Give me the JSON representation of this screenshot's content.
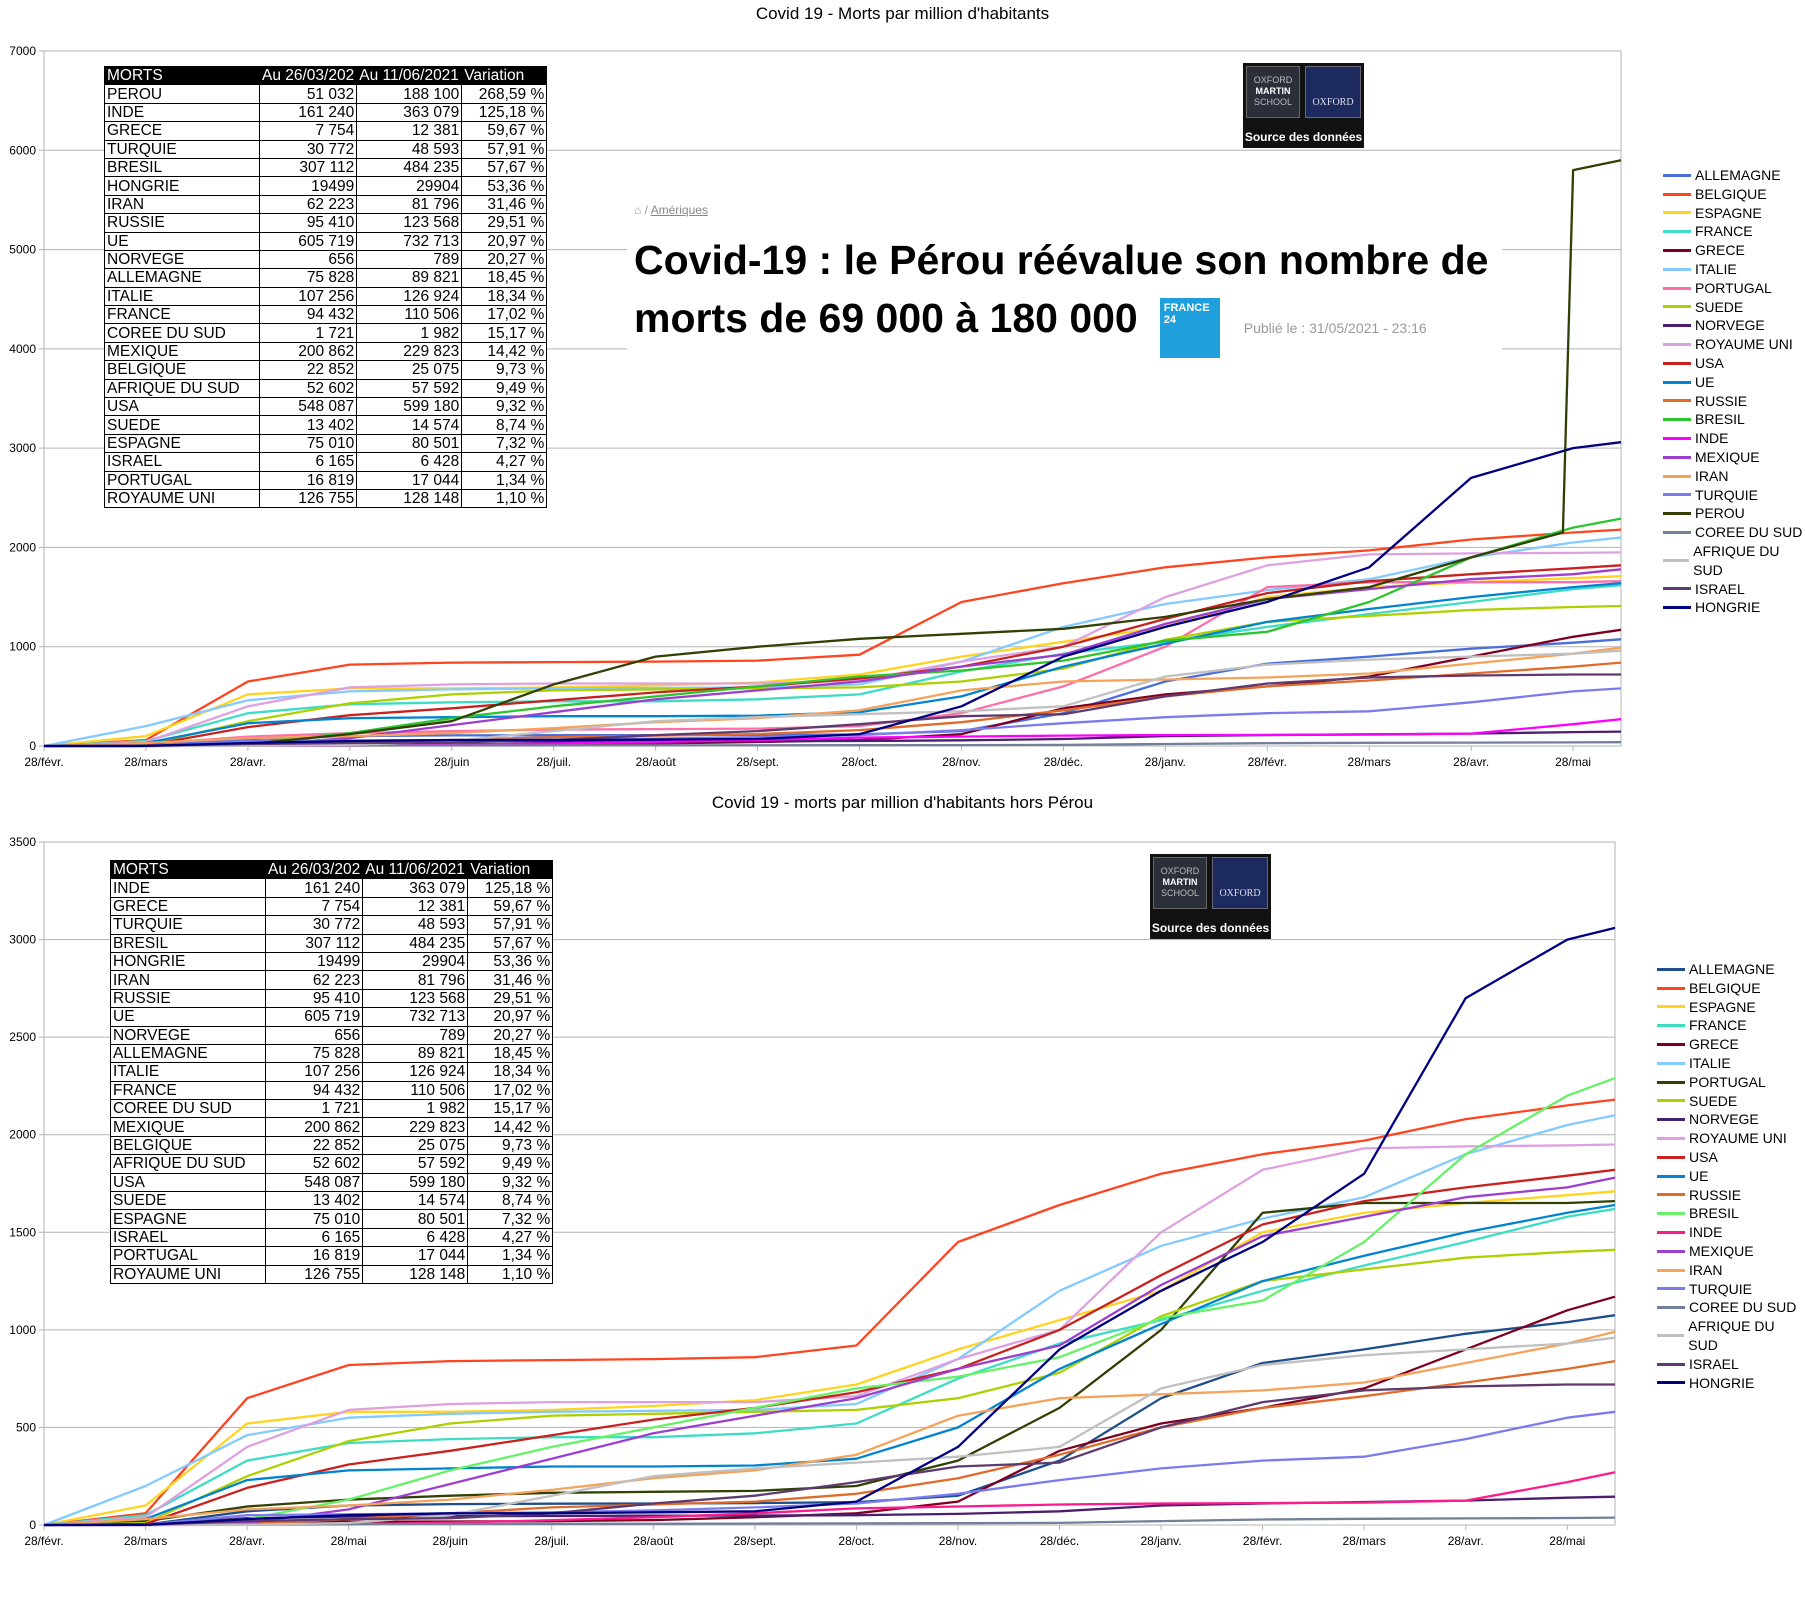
{
  "chart_data": [
    {
      "type": "line",
      "title": "Covid 19 - Morts par million d'habitants",
      "ylim": [
        0,
        7000
      ],
      "yticks": [
        0,
        1000,
        2000,
        3000,
        4000,
        5000,
        6000,
        7000
      ],
      "include_peru": true,
      "legend_placement": "right"
    },
    {
      "type": "line",
      "title": "Covid 19 - morts par million d'habitants hors Pérou",
      "ylim": [
        0,
        3500
      ],
      "yticks": [
        0,
        500,
        1000,
        1500,
        2000,
        2500,
        3000,
        3500
      ],
      "include_peru": false,
      "legend_placement": "right"
    }
  ],
  "x_ticks": [
    "28/févr.",
    "28/mars",
    "28/avr.",
    "28/mai",
    "28/juin",
    "28/juil.",
    "28/août",
    "28/sept.",
    "28/oct.",
    "28/nov.",
    "28/déc.",
    "28/janv.",
    "28/févr.",
    "28/mars",
    "28/avr.",
    "28/mai"
  ],
  "x_months": [
    0,
    1,
    2,
    3,
    4,
    5,
    6,
    7,
    8,
    9,
    10,
    11,
    12,
    13,
    14,
    15,
    15.47
  ],
  "series": [
    {
      "name": "ALLEMAGNE",
      "colorTop": "#4a6fdc",
      "colorBottom": "#1f4e8c",
      "values": [
        0,
        2,
        70,
        100,
        107,
        109,
        110,
        112,
        117,
        150,
        330,
        650,
        830,
        900,
        980,
        1040,
        1075
      ]
    },
    {
      "name": "BELGIQUE",
      "colorTop": "#ff4420",
      "colorBottom": "#ff4420",
      "values": [
        0,
        60,
        650,
        820,
        840,
        845,
        850,
        860,
        920,
        1450,
        1640,
        1800,
        1900,
        1970,
        2080,
        2150,
        2180
      ]
    },
    {
      "name": "ESPAGNE",
      "colorTop": "#ffd320",
      "colorBottom": "#ffd320",
      "values": [
        0,
        100,
        520,
        580,
        580,
        590,
        610,
        640,
        720,
        900,
        1050,
        1200,
        1500,
        1600,
        1650,
        1690,
        1710
      ]
    },
    {
      "name": "FRANCE",
      "colorTop": "#3ddcc4",
      "colorBottom": "#3ddcc4",
      "values": [
        0,
        50,
        330,
        420,
        440,
        450,
        450,
        470,
        520,
        750,
        930,
        1050,
        1200,
        1330,
        1450,
        1580,
        1620
      ]
    },
    {
      "name": "GRECE",
      "colorTop": "#7e0021",
      "colorBottom": "#7e0021",
      "values": [
        0,
        3,
        15,
        17,
        18,
        20,
        25,
        40,
        60,
        120,
        380,
        520,
        600,
        700,
        900,
        1100,
        1170
      ]
    },
    {
      "name": "ITALIE",
      "colorTop": "#83caff",
      "colorBottom": "#83caff",
      "values": [
        0,
        200,
        460,
        550,
        570,
        580,
        585,
        590,
        620,
        850,
        1200,
        1430,
        1570,
        1680,
        1900,
        2050,
        2100
      ]
    },
    {
      "name": "PORTUGAL",
      "colorTop": "#ff6ea8",
      "colorBottom": "#314004",
      "values": [
        0,
        20,
        95,
        130,
        150,
        165,
        170,
        175,
        200,
        330,
        600,
        1000,
        1600,
        1650,
        1650,
        1650,
        1660
      ]
    },
    {
      "name": "SUEDE",
      "colorTop": "#aecf00",
      "colorBottom": "#aecf00",
      "values": [
        0,
        10,
        250,
        430,
        520,
        560,
        570,
        580,
        590,
        650,
        780,
        1070,
        1250,
        1310,
        1370,
        1400,
        1410
      ]
    },
    {
      "name": "NORVEGE",
      "colorTop": "#4b1f6f",
      "colorBottom": "#4b1f6f",
      "values": [
        0,
        3,
        35,
        43,
        45,
        46,
        48,
        48,
        50,
        57,
        70,
        100,
        110,
        118,
        125,
        140,
        145
      ]
    },
    {
      "name": "ROYAUME UNI",
      "colorTop": "#dea0e0",
      "colorBottom": "#dea0e0",
      "values": [
        0,
        40,
        400,
        590,
        620,
        630,
        630,
        630,
        660,
        850,
        1000,
        1500,
        1820,
        1930,
        1940,
        1945,
        1950
      ]
    },
    {
      "name": "USA",
      "colorTop": "#c9211e",
      "colorBottom": "#c9211e",
      "values": [
        0,
        5,
        190,
        310,
        380,
        460,
        540,
        600,
        680,
        800,
        1000,
        1280,
        1540,
        1660,
        1730,
        1790,
        1820
      ]
    },
    {
      "name": "UE",
      "colorTop": "#0084d1",
      "colorBottom": "#0084d1",
      "values": [
        0,
        30,
        230,
        280,
        290,
        300,
        300,
        305,
        340,
        500,
        800,
        1030,
        1250,
        1380,
        1500,
        1600,
        1640
      ]
    },
    {
      "name": "RUSSIE",
      "colorTop": "#e16b2a",
      "colorBottom": "#e16b2a",
      "values": [
        0,
        0,
        5,
        30,
        60,
        90,
        105,
        120,
        160,
        240,
        360,
        500,
        600,
        660,
        730,
        800,
        840
      ]
    },
    {
      "name": "BRESIL",
      "colorTop": "#2ec42e",
      "colorBottom": "#66f266",
      "values": [
        0,
        1,
        30,
        130,
        280,
        400,
        500,
        600,
        700,
        760,
        860,
        1060,
        1150,
        1450,
        1900,
        2200,
        2290
      ]
    },
    {
      "name": "INDE",
      "colorTop": "#ff00ff",
      "colorBottom": "#ff1a8c",
      "values": [
        0,
        0,
        1,
        4,
        12,
        25,
        40,
        60,
        85,
        95,
        105,
        110,
        112,
        115,
        125,
        220,
        270
      ]
    },
    {
      "name": "MEXIQUE",
      "colorTop": "#9c3fd0",
      "colorBottom": "#9c3fd0",
      "values": [
        0,
        0,
        10,
        80,
        210,
        340,
        470,
        560,
        650,
        800,
        920,
        1230,
        1480,
        1580,
        1680,
        1730,
        1780
      ]
    },
    {
      "name": "IRAN",
      "colorTop": "#f5a35a",
      "colorBottom": "#f5a35a",
      "values": [
        0,
        30,
        80,
        100,
        130,
        180,
        240,
        280,
        360,
        560,
        650,
        670,
        690,
        730,
        830,
        930,
        990
      ]
    },
    {
      "name": "TURQUIE",
      "colorTop": "#7b7bee",
      "colorBottom": "#7b7bee",
      "values": [
        0,
        2,
        50,
        55,
        60,
        65,
        75,
        90,
        110,
        160,
        230,
        290,
        330,
        350,
        440,
        550,
        580
      ]
    },
    {
      "name": "PEROU",
      "colorTop": "#314004",
      "colorBottom": "#314004",
      "topOnly": true,
      "x": [
        0,
        1,
        2,
        3,
        4,
        5,
        6,
        7,
        8,
        9,
        10,
        11,
        12,
        13,
        14,
        14.9,
        15.0,
        15.47
      ],
      "values": [
        0,
        2,
        20,
        120,
        250,
        620,
        900,
        1000,
        1080,
        1130,
        1180,
        1300,
        1480,
        1600,
        1900,
        2150,
        5800,
        5900
      ]
    },
    {
      "name": "COREE DU SUD",
      "colorTop": "#738099",
      "colorBottom": "#738099",
      "values": [
        0,
        1,
        4,
        5,
        5,
        6,
        6,
        7,
        8,
        9,
        11,
        20,
        28,
        32,
        34,
        36,
        38
      ]
    },
    {
      "name": "AFRIQUE DU SUD",
      "colorTop": "#c0c0c0",
      "colorBottom": "#c0c0c0",
      "values": [
        0,
        0,
        1,
        10,
        50,
        150,
        250,
        290,
        320,
        350,
        400,
        700,
        820,
        870,
        900,
        930,
        960
      ]
    },
    {
      "name": "ISRAEL",
      "colorTop": "#5e3a6e",
      "colorBottom": "#5e3a6e",
      "values": [
        0,
        1,
        20,
        30,
        35,
        60,
        110,
        150,
        220,
        300,
        320,
        500,
        630,
        690,
        710,
        720,
        720
      ]
    },
    {
      "name": "HONGRIE",
      "colorTop": "#000080",
      "colorBottom": "#000080",
      "values": [
        0,
        1,
        30,
        50,
        60,
        60,
        65,
        70,
        120,
        400,
        900,
        1200,
        1450,
        1800,
        2700,
        3000,
        3060
      ]
    }
  ],
  "legend_top": [
    "ALLEMAGNE",
    "BELGIQUE",
    "ESPAGNE",
    "FRANCE",
    "GRECE",
    "ITALIE",
    "PORTUGAL",
    "SUEDE",
    "NORVEGE",
    "ROYAUME UNI",
    "USA",
    "UE",
    "RUSSIE",
    "BRESIL",
    "INDE",
    "MEXIQUE",
    "IRAN",
    "TURQUIE",
    "PEROU",
    "COREE DU SUD",
    "AFRIQUE DU SUD",
    "ISRAEL",
    "HONGRIE"
  ],
  "legend_bottom": [
    "ALLEMAGNE",
    "BELGIQUE",
    "ESPAGNE",
    "FRANCE",
    "GRECE",
    "ITALIE",
    "PORTUGAL",
    "SUEDE",
    "NORVEGE",
    "ROYAUME UNI",
    "USA",
    "UE",
    "RUSSIE",
    "BRESIL",
    "INDE",
    "MEXIQUE",
    "IRAN",
    "TURQUIE",
    "COREE DU SUD",
    "AFRIQUE DU SUD",
    "ISRAEL",
    "HONGRIE"
  ],
  "table": {
    "headers": [
      "MORTS",
      "Au 26/03/202",
      "Au 11/06/2021",
      "Variation"
    ],
    "rows": [
      [
        "PEROU",
        "51 032",
        "188 100",
        "268,59 %"
      ],
      [
        "INDE",
        "161 240",
        "363 079",
        "125,18 %"
      ],
      [
        "GRECE",
        "7 754",
        "12 381",
        "59,67 %"
      ],
      [
        "TURQUIE",
        "30 772",
        "48 593",
        "57,91 %"
      ],
      [
        "BRESIL",
        "307 112",
        "484 235",
        "57,67 %"
      ],
      [
        "HONGRIE",
        "19499",
        "29904",
        "53,36 %"
      ],
      [
        "IRAN",
        "62 223",
        "81 796",
        "31,46 %"
      ],
      [
        "RUSSIE",
        "95 410",
        "123 568",
        "29,51 %"
      ],
      [
        "UE",
        "605 719",
        "732 713",
        "20,97 %"
      ],
      [
        "NORVEGE",
        "656",
        "789",
        "20,27 %"
      ],
      [
        "ALLEMAGNE",
        "75 828",
        "89 821",
        "18,45 %"
      ],
      [
        "ITALIE",
        "107 256",
        "126 924",
        "18,34 %"
      ],
      [
        "FRANCE",
        "94 432",
        "110 506",
        "17,02 %"
      ],
      [
        "COREE DU SUD",
        "1 721",
        "1 982",
        "15,17 %"
      ],
      [
        "MEXIQUE",
        "200 862",
        "229 823",
        "14,42 %"
      ],
      [
        "BELGIQUE",
        "22 852",
        "25 075",
        "9,73 %"
      ],
      [
        "AFRIQUE DU SUD",
        "52 602",
        "57 592",
        "9,49 %"
      ],
      [
        "USA",
        "548 087",
        "599 180",
        "9,32 %"
      ],
      [
        "SUEDE",
        "13 402",
        "14 574",
        "8,74 %"
      ],
      [
        "ESPAGNE",
        "75 010",
        "80 501",
        "7,32 %"
      ],
      [
        "ISRAEL",
        "6 165",
        "6 428",
        "4,27 %"
      ],
      [
        "PORTUGAL",
        "16 819",
        "17 044",
        "1,34 %"
      ],
      [
        "ROYAUME UNI",
        "126 755",
        "128 148",
        "1,10 %"
      ]
    ]
  },
  "logo": {
    "line1": "OXFORD",
    "line2": "MARTIN",
    "line3": "SCHOOL",
    "univ": "OXFORD",
    "caption": "Source des données"
  },
  "article": {
    "breadcrumb": "Amériques",
    "headline": "Covid-19 : le Pérou réévalue son nombre de morts de 69 000 à 180 000",
    "brand": "FRANCE 24",
    "published": "Publié le : 31/05/2021 - 23:16"
  }
}
